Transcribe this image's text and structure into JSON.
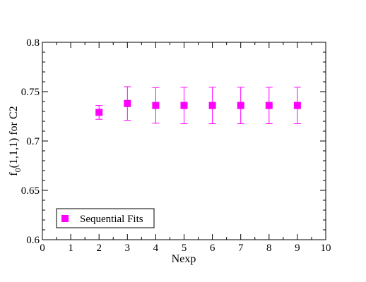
{
  "chart_data": {
    "type": "scatter",
    "xlabel": "Nexp",
    "ylabel": {
      "base": "f",
      "sub": "0",
      "rest": "(1,1,1)  for  C2"
    },
    "xlim": [
      0,
      10
    ],
    "ylim": [
      0.6,
      0.8
    ],
    "x_ticks": [
      0,
      1,
      2,
      3,
      4,
      5,
      6,
      7,
      8,
      9,
      10
    ],
    "x_tick_labels": [
      "0",
      "1",
      "2",
      "3",
      "4",
      "5",
      "6",
      "7",
      "8",
      "9",
      "10"
    ],
    "y_ticks": [
      0.6,
      0.65,
      0.7,
      0.75,
      0.8
    ],
    "y_tick_labels": [
      "0.6",
      "0.65",
      "0.7",
      "0.75",
      "0.8"
    ],
    "grid": false,
    "legend_position": "bottom-left",
    "series": [
      {
        "name": "Sequential Fits",
        "color": "#ff00ff",
        "marker": "square",
        "x": [
          2,
          3,
          4,
          5,
          6,
          7,
          8,
          9
        ],
        "y": [
          0.729,
          0.738,
          0.736,
          0.736,
          0.736,
          0.736,
          0.736,
          0.736
        ],
        "err": [
          0.007,
          0.017,
          0.018,
          0.0185,
          0.0185,
          0.0185,
          0.0185,
          0.0185
        ]
      }
    ]
  }
}
